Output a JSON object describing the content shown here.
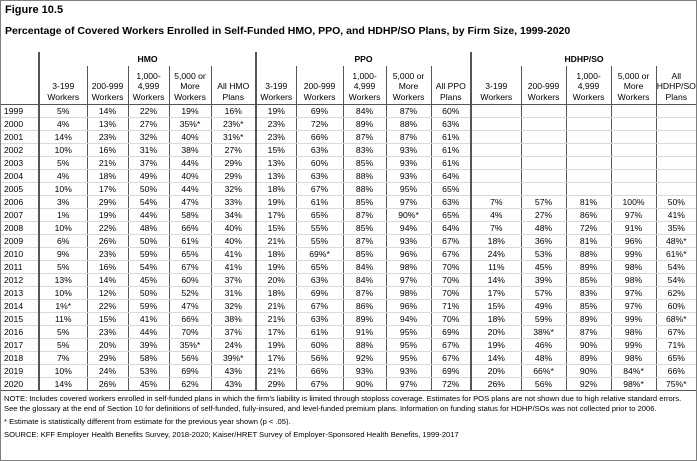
{
  "figure_label": "Figure 10.5",
  "title": "Percentage of Covered Workers Enrolled in Self-Funded HMO, PPO, and HDHP/SO Plans, by Firm Size, 1999-2020",
  "groups": [
    "HMO",
    "PPO",
    "HDHP/SO"
  ],
  "columns": {
    "HMO": [
      "3-199 Workers",
      "200-999 Workers",
      "1,000-4,999 Workers",
      "5,000 or More Workers",
      "All HMO Plans"
    ],
    "PPO": [
      "3-199 Workers",
      "200-999 Workers",
      "1,000-4,999 Workers",
      "5,000 or More Workers",
      "All PPO Plans"
    ],
    "HDHP/SO": [
      "3-199 Workers",
      "200-999 Workers",
      "1,000-4,999 Workers",
      "5,000 or More Workers",
      "All HDHP/SO Plans"
    ]
  },
  "rows": [
    {
      "year": "1999",
      "HMO": [
        "5%",
        "14%",
        "22%",
        "19%",
        "16%"
      ],
      "PPO": [
        "19%",
        "69%",
        "84%",
        "87%",
        "60%"
      ],
      "HDHP/SO": [
        "",
        "",
        "",
        "",
        ""
      ]
    },
    {
      "year": "2000",
      "HMO": [
        "4%",
        "13%",
        "27%",
        "35%*",
        "23%*"
      ],
      "PPO": [
        "23%",
        "72%",
        "89%",
        "88%",
        "63%"
      ],
      "HDHP/SO": [
        "",
        "",
        "",
        "",
        ""
      ]
    },
    {
      "year": "2001",
      "HMO": [
        "14%",
        "23%",
        "32%",
        "40%",
        "31%*"
      ],
      "PPO": [
        "23%",
        "66%",
        "87%",
        "87%",
        "61%"
      ],
      "HDHP/SO": [
        "",
        "",
        "",
        "",
        ""
      ]
    },
    {
      "year": "2002",
      "HMO": [
        "10%",
        "16%",
        "31%",
        "38%",
        "27%"
      ],
      "PPO": [
        "15%",
        "63%",
        "83%",
        "93%",
        "61%"
      ],
      "HDHP/SO": [
        "",
        "",
        "",
        "",
        ""
      ]
    },
    {
      "year": "2003",
      "HMO": [
        "5%",
        "21%",
        "37%",
        "44%",
        "29%"
      ],
      "PPO": [
        "13%",
        "60%",
        "85%",
        "93%",
        "61%"
      ],
      "HDHP/SO": [
        "",
        "",
        "",
        "",
        ""
      ]
    },
    {
      "year": "2004",
      "HMO": [
        "4%",
        "18%",
        "49%",
        "40%",
        "29%"
      ],
      "PPO": [
        "13%",
        "63%",
        "88%",
        "93%",
        "64%"
      ],
      "HDHP/SO": [
        "",
        "",
        "",
        "",
        ""
      ]
    },
    {
      "year": "2005",
      "HMO": [
        "10%",
        "17%",
        "50%",
        "44%",
        "32%"
      ],
      "PPO": [
        "18%",
        "67%",
        "88%",
        "95%",
        "65%"
      ],
      "HDHP/SO": [
        "",
        "",
        "",
        "",
        ""
      ]
    },
    {
      "year": "2006",
      "HMO": [
        "3%",
        "29%",
        "54%",
        "47%",
        "33%"
      ],
      "PPO": [
        "19%",
        "61%",
        "85%",
        "97%",
        "63%"
      ],
      "HDHP/SO": [
        "7%",
        "57%",
        "81%",
        "100%",
        "50%"
      ]
    },
    {
      "year": "2007",
      "HMO": [
        "1%",
        "19%",
        "44%",
        "58%",
        "34%"
      ],
      "PPO": [
        "17%",
        "65%",
        "87%",
        "90%*",
        "65%"
      ],
      "HDHP/SO": [
        "4%",
        "27%",
        "86%",
        "97%",
        "41%"
      ]
    },
    {
      "year": "2008",
      "HMO": [
        "10%",
        "22%",
        "48%",
        "66%",
        "40%"
      ],
      "PPO": [
        "15%",
        "55%",
        "85%",
        "94%",
        "64%"
      ],
      "HDHP/SO": [
        "7%",
        "48%",
        "72%",
        "91%",
        "35%"
      ]
    },
    {
      "year": "2009",
      "HMO": [
        "6%",
        "26%",
        "50%",
        "61%",
        "40%"
      ],
      "PPO": [
        "21%",
        "55%",
        "87%",
        "93%",
        "67%"
      ],
      "HDHP/SO": [
        "18%",
        "36%",
        "81%",
        "96%",
        "48%*"
      ]
    },
    {
      "year": "2010",
      "HMO": [
        "9%",
        "23%",
        "59%",
        "65%",
        "41%"
      ],
      "PPO": [
        "18%",
        "69%*",
        "85%",
        "96%",
        "67%"
      ],
      "HDHP/SO": [
        "24%",
        "53%",
        "88%",
        "99%",
        "61%*"
      ]
    },
    {
      "year": "2011",
      "HMO": [
        "5%",
        "16%",
        "54%",
        "67%",
        "41%"
      ],
      "PPO": [
        "19%",
        "65%",
        "84%",
        "98%",
        "70%"
      ],
      "HDHP/SO": [
        "11%",
        "45%",
        "89%",
        "98%",
        "54%"
      ]
    },
    {
      "year": "2012",
      "HMO": [
        "13%",
        "14%",
        "45%",
        "60%",
        "37%"
      ],
      "PPO": [
        "20%",
        "63%",
        "84%",
        "97%",
        "70%"
      ],
      "HDHP/SO": [
        "14%",
        "39%",
        "85%",
        "98%",
        "54%"
      ]
    },
    {
      "year": "2013",
      "HMO": [
        "10%",
        "12%",
        "50%",
        "52%",
        "31%"
      ],
      "PPO": [
        "18%",
        "69%",
        "87%",
        "98%",
        "70%"
      ],
      "HDHP/SO": [
        "17%",
        "57%",
        "83%",
        "97%",
        "62%"
      ]
    },
    {
      "year": "2014",
      "HMO": [
        "1%*",
        "22%",
        "59%",
        "47%",
        "32%"
      ],
      "PPO": [
        "21%",
        "67%",
        "86%",
        "96%",
        "71%"
      ],
      "HDHP/SO": [
        "15%",
        "49%",
        "85%",
        "97%",
        "60%"
      ]
    },
    {
      "year": "2015",
      "HMO": [
        "11%",
        "15%",
        "41%",
        "66%",
        "38%"
      ],
      "PPO": [
        "21%",
        "63%",
        "89%",
        "94%",
        "70%"
      ],
      "HDHP/SO": [
        "18%",
        "59%",
        "89%",
        "99%",
        "68%*"
      ]
    },
    {
      "year": "2016",
      "HMO": [
        "5%",
        "23%",
        "44%",
        "70%",
        "37%"
      ],
      "PPO": [
        "17%",
        "61%",
        "91%",
        "95%",
        "69%"
      ],
      "HDHP/SO": [
        "20%",
        "38%*",
        "87%",
        "98%",
        "67%"
      ]
    },
    {
      "year": "2017",
      "HMO": [
        "5%",
        "20%",
        "39%",
        "35%*",
        "24%"
      ],
      "PPO": [
        "19%",
        "60%",
        "88%",
        "95%",
        "67%"
      ],
      "HDHP/SO": [
        "19%",
        "46%",
        "90%",
        "99%",
        "71%"
      ]
    },
    {
      "year": "2018",
      "HMO": [
        "7%",
        "29%",
        "58%",
        "56%",
        "39%*"
      ],
      "PPO": [
        "17%",
        "56%",
        "92%",
        "95%",
        "67%"
      ],
      "HDHP/SO": [
        "14%",
        "48%",
        "89%",
        "98%",
        "65%"
      ]
    },
    {
      "year": "2019",
      "HMO": [
        "10%",
        "24%",
        "53%",
        "69%",
        "43%"
      ],
      "PPO": [
        "21%",
        "66%",
        "93%",
        "93%",
        "69%"
      ],
      "HDHP/SO": [
        "20%",
        "66%*",
        "90%",
        "84%*",
        "66%"
      ]
    },
    {
      "year": "2020",
      "HMO": [
        "14%",
        "26%",
        "45%",
        "62%",
        "43%"
      ],
      "PPO": [
        "29%",
        "67%",
        "90%",
        "97%",
        "72%"
      ],
      "HDHP/SO": [
        "26%",
        "56%",
        "92%",
        "98%*",
        "75%*"
      ]
    }
  ],
  "notes": {
    "note": "NOTE: Includes covered workers enrolled in self-funded plans in which the firm's liability is limited through stoploss coverage. Estimates for POS plans are not shown due to high relative standard errors. See the glossary at the end of Section 10 for definitions of self-funded, fully-insured, and level-funded premium plans. Information on funding status for HDHP/SOs was not collected prior to 2006.",
    "asterisk": "* Estimate is statistically different from estimate for the previous year shown (p < .05).",
    "source": "SOURCE: KFF Employer Health Benefits Survey, 2018-2020; Kaiser/HRET Survey of Employer-Sponsored Health Benefits, 1999-2017"
  }
}
